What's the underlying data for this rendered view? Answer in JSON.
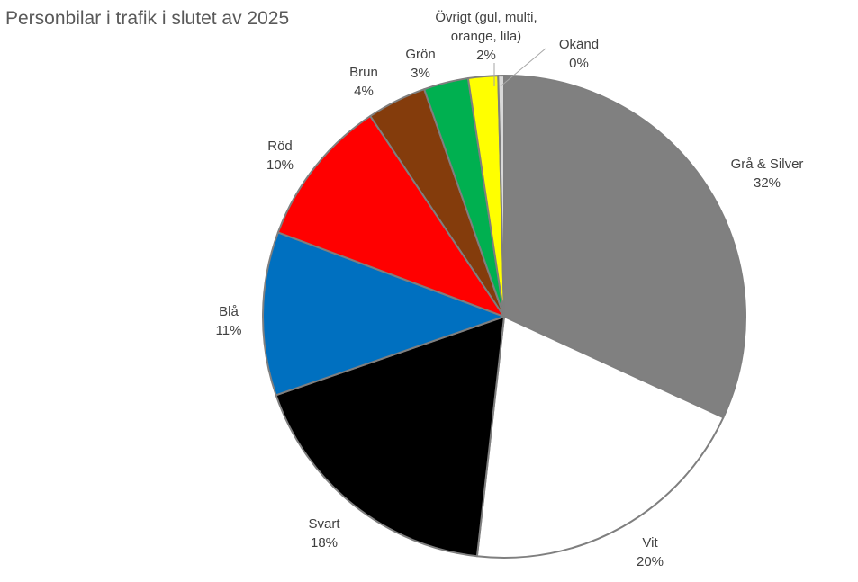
{
  "chart_data": {
    "type": "pie",
    "title": "Personbilar i trafik i slutet av 2025",
    "legend": "none",
    "slices": [
      {
        "name": "Grå & Silver",
        "value": 32,
        "label": "32%",
        "color": "#808080",
        "label_lines": [
          "Grå & Silver"
        ]
      },
      {
        "name": "Vit",
        "value": 20,
        "label": "20%",
        "color": "#ffffff",
        "label_lines": [
          "Vit"
        ]
      },
      {
        "name": "Svart",
        "value": 18,
        "label": "18%",
        "color": "#000000",
        "label_lines": [
          "Svart"
        ]
      },
      {
        "name": "Blå",
        "value": 11,
        "label": "11%",
        "color": "#0070c0",
        "label_lines": [
          "Blå"
        ]
      },
      {
        "name": "Röd",
        "value": 10,
        "label": "10%",
        "color": "#ff0000",
        "label_lines": [
          "Röd"
        ]
      },
      {
        "name": "Brun",
        "value": 4,
        "label": "4%",
        "color": "#843c0c",
        "label_lines": [
          "Brun"
        ]
      },
      {
        "name": "Grön",
        "value": 3,
        "label": "3%",
        "color": "#00b050",
        "label_lines": [
          "Grön"
        ]
      },
      {
        "name": "Övrigt (gul, multi, orange, lila)",
        "value": 2,
        "label": "2%",
        "color": "#ffff00",
        "label_lines": [
          "Övrigt (gul, multi,",
          "orange, lila)"
        ]
      },
      {
        "name": "Okänd",
        "value": 0.4,
        "label": "0%",
        "color": "#d9d9d9",
        "label_lines": [
          "Okänd"
        ]
      }
    ],
    "start_angle_deg": 0,
    "direction": "clockwise",
    "slice_border_color": "#7f7f7f"
  }
}
